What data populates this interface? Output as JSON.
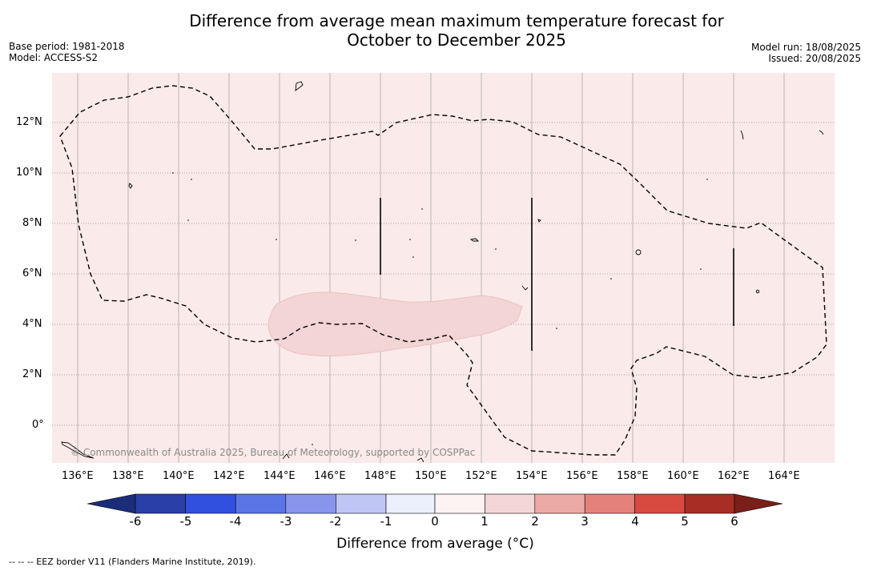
{
  "title": {
    "line1": "Difference from average mean maximum temperature forecast for",
    "line2": "October to December 2025"
  },
  "meta_left": {
    "base_period": "Base period: 1981-2018",
    "model": "Model: ACCESS-S2"
  },
  "meta_right": {
    "model_run": "Model run: 18/08/2025",
    "issued": "Issued: 20/08/2025"
  },
  "map": {
    "background_color": "#fbeaea",
    "x_ticks": [
      "136°E",
      "138°E",
      "140°E",
      "142°E",
      "144°E",
      "146°E",
      "148°E",
      "150°E",
      "152°E",
      "154°E",
      "156°E",
      "158°E",
      "160°E",
      "162°E",
      "164°E"
    ],
    "y_ticks": [
      "12°N",
      "10°N",
      "8°N",
      "6°N",
      "4°N",
      "2°N",
      "0°"
    ],
    "copyright": "© Commonwealth of Australia 2025, Bureau of Meteorology, supported by COSPPac"
  },
  "colorbar": {
    "label": "Difference from average (°C)",
    "ticks": [
      "-6",
      "-5",
      "-4",
      "-3",
      "-2",
      "-1",
      "0",
      "1",
      "2",
      "3",
      "4",
      "5",
      "6"
    ],
    "colors": [
      "#2a3fa8",
      "#3150e0",
      "#5a76e6",
      "#8796ea",
      "#bfc6f4",
      "#eceffc",
      "#fdf3f3",
      "#f3d6d5",
      "#ecaaa6",
      "#e5817b",
      "#d84a40",
      "#a82d24"
    ],
    "under_color": "#1b2d7a",
    "over_color": "#7a1f1a"
  },
  "eez_note": "--  --  -- EEZ border V11 (Flanders Marine Institute, 2019)."
}
